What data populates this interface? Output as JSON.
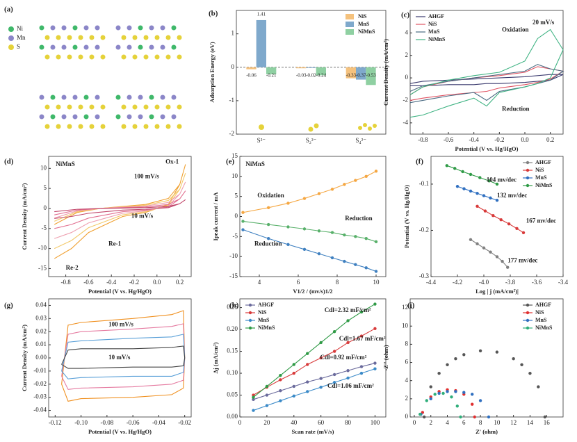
{
  "figure_a": {
    "label": "(a)",
    "legend": [
      "Ni",
      "Mn",
      "S"
    ]
  },
  "chart_data": [
    {
      "type": "bar",
      "panel": "(b)",
      "ylabel": "Adsorption Energy (eV)",
      "categories": [
        "S²⁻",
        "S₂²⁻",
        "S₄²⁻"
      ],
      "series": [
        {
          "name": "NiS",
          "color": "#f5c27e",
          "values": [
            -0.06,
            -0.03,
            -0.33
          ]
        },
        {
          "name": "MnS",
          "color": "#7fa9cc",
          "values": [
            1.41,
            -0.02,
            -0.37
          ]
        },
        {
          "name": "NiMnS",
          "color": "#8fd0a2",
          "values": [
            -0.21,
            -0.24,
            -0.53
          ]
        }
      ],
      "ylim": [
        -2,
        1.7
      ],
      "yticks": [
        -2,
        -1,
        0,
        1
      ],
      "legend": "upper right",
      "data_labels": true
    },
    {
      "type": "line",
      "panel": "(c)",
      "xlabel": "Potential (V vs. Hg/HgO)",
      "ylabel": "Current Density (mA/cm²)",
      "x": [
        -0.9,
        -0.8,
        -0.6,
        -0.4,
        -0.2,
        0,
        0.1,
        0.2,
        0.3,
        0.2,
        0.1,
        0,
        -0.2,
        -0.3,
        -0.4,
        -0.6,
        -0.8,
        -0.9
      ],
      "series": [
        {
          "name": "AHGF",
          "color": "#3a3a6e",
          "values": [
            -0.5,
            -0.3,
            -0.2,
            -0.1,
            0,
            0.1,
            0.2,
            0.3,
            0.3,
            -0.2,
            -0.3,
            -0.4,
            -0.5,
            -0.5,
            -0.6,
            -0.6,
            -0.7,
            -0.7
          ]
        },
        {
          "name": "NiS",
          "color": "#e05262",
          "values": [
            -1.5,
            -0.8,
            -0.3,
            0,
            0.2,
            0.5,
            1.0,
            0.8,
            0.6,
            -0.1,
            -0.4,
            -0.6,
            -0.9,
            -1.2,
            -1.3,
            -1.5,
            -1.8,
            -2.0
          ]
        },
        {
          "name": "MnS",
          "color": "#4a6a82",
          "values": [
            -1.2,
            -0.7,
            -0.3,
            0,
            0.3,
            0.6,
            1.2,
            0.8,
            0.6,
            -0.2,
            -0.5,
            -0.8,
            -1.2,
            -2.0,
            -1.3,
            -1.6,
            -2.0,
            -2.2
          ]
        },
        {
          "name": "NiMnS",
          "color": "#3fb383",
          "values": [
            -1.5,
            -0.8,
            -0.2,
            0.2,
            0.5,
            1.5,
            3.5,
            4.3,
            2.5,
            0,
            -0.5,
            -0.8,
            -1.3,
            -2.5,
            -1.8,
            -2.5,
            -3.3,
            -3.5
          ]
        }
      ],
      "xlim": [
        -0.9,
        0.3
      ],
      "xticks": [
        -0.8,
        -0.6,
        -0.4,
        -0.2,
        {
          "value": 0,
          "label": "0.0"
        },
        0.2
      ],
      "ylim": [
        -5,
        6
      ],
      "yticks": [
        -4,
        -2,
        0,
        2,
        4
      ],
      "legend": "upper left",
      "annotations": [
        "20 mV/s",
        "Oxidation",
        "Reduction"
      ]
    },
    {
      "type": "line",
      "panel": "(d)",
      "xlabel": "Potential (V vs. Hg/HgO)",
      "ylabel": "Current Density (mA/cm²)",
      "x": [
        -0.9,
        -0.7,
        -0.5,
        -0.3,
        -0.1,
        0.1,
        0.2,
        0.25,
        0.2,
        0.1,
        -0.1,
        -0.3,
        -0.45,
        -0.6,
        -0.75,
        -0.9
      ],
      "series": [
        {
          "color": "#f0a030",
          "values": [
            -4,
            -1,
            0,
            0.5,
            1,
            2.5,
            6,
            11,
            6,
            1,
            -1,
            -2,
            -4,
            -6,
            -10,
            -12.5
          ]
        },
        {
          "color": "#f3c96a",
          "values": [
            -3.2,
            -0.8,
            0,
            0.4,
            0.8,
            2,
            4.8,
            8.8,
            4.8,
            0.8,
            -0.8,
            -1.6,
            -3.2,
            -4.8,
            -8,
            -10
          ]
        },
        {
          "color": "#eea0b0",
          "values": [
            -2.4,
            -0.6,
            0,
            0.3,
            0.6,
            1.5,
            3.6,
            6.6,
            3.6,
            0.6,
            -0.6,
            -1.2,
            -2.4,
            -3.6,
            -6,
            -7.5
          ]
        },
        {
          "color": "#e27090",
          "values": [
            -1.6,
            -0.4,
            0,
            0.2,
            0.4,
            1,
            2.4,
            4.4,
            2.4,
            0.4,
            -0.4,
            -0.8,
            -1.6,
            -2.4,
            -4,
            -5
          ]
        },
        {
          "color": "#c04468",
          "values": [
            -0.8,
            -0.2,
            0,
            0.1,
            0.2,
            0.5,
            1.2,
            2.2,
            1.2,
            0.2,
            -0.2,
            -0.4,
            -0.8,
            -1.2,
            -2,
            -2.5
          ]
        }
      ],
      "xlim": [
        -0.95,
        0.3
      ],
      "xticks": [
        -0.8,
        -0.6,
        -0.4,
        -0.2,
        {
          "value": 0,
          "label": "0.0"
        },
        0.2
      ],
      "ylim": [
        -17,
        13
      ],
      "yticks": [
        -15,
        -10,
        -5,
        0,
        5,
        10
      ],
      "annotations": [
        "NiMnS",
        "Ox-1",
        "100 mV/s",
        "10 mV/s",
        "Re-1",
        "Re-2"
      ]
    },
    {
      "type": "line",
      "panel": "(e)",
      "xlabel": "V1/2 / (mv/s)1/2",
      "ylabel": "Ipeak current / mA",
      "markers": true,
      "x": [
        3.16,
        4.47,
        5.48,
        6.32,
        7.07,
        7.75,
        8.37,
        8.94,
        9.49,
        10
      ],
      "series": [
        {
          "color": "#f5a742",
          "values": [
            1,
            2.2,
            3.3,
            4.5,
            5.7,
            6.8,
            8,
            9,
            10,
            11.3
          ]
        },
        {
          "color": "#58b06a",
          "values": [
            -1.2,
            -2,
            -2.6,
            -3.1,
            -3.6,
            -4,
            -4.6,
            -5,
            -5.5,
            -6.3
          ]
        },
        {
          "color": "#3f80c0",
          "values": [
            -3.3,
            -5.5,
            -7,
            -8.2,
            -9.3,
            -10.3,
            -11.2,
            -12,
            -12.8,
            -13.7
          ]
        }
      ],
      "xlim": [
        3,
        10.5
      ],
      "xticks": [
        4,
        6,
        8,
        10
      ],
      "ylim": [
        -15,
        15
      ],
      "yticks": [
        -15,
        -10,
        -5,
        0,
        5,
        10,
        15
      ],
      "annotations": [
        "NiMnS",
        "Oxidation",
        "Reduction",
        "Reduction"
      ]
    },
    {
      "type": "line",
      "panel": "(f)",
      "xlabel": "Log | j (mA/cm²)|",
      "ylabel": "Potential (V vs. Hg/HgO)",
      "markers": true,
      "series": [
        {
          "name": "AHGF",
          "color": "#808080",
          "x": [
            -4.1,
            -4.05,
            -4.0,
            -3.95,
            -3.9,
            -3.86,
            -3.82
          ],
          "values": [
            -0.22,
            -0.229,
            -0.238,
            -0.247,
            -0.257,
            -0.267,
            -0.28
          ]
        },
        {
          "name": "NiS",
          "color": "#d83a3a",
          "x": [
            -4.05,
            -3.99,
            -3.93,
            -3.87,
            -3.81,
            -3.75,
            -3.7
          ],
          "values": [
            -0.148,
            -0.158,
            -0.168,
            -0.177,
            -0.186,
            -0.196,
            -0.205
          ]
        },
        {
          "name": "MnS",
          "color": "#2f6fc0",
          "x": [
            -4.2,
            -4.15,
            -4.1,
            -4.05,
            -4.0,
            -3.95,
            -3.9
          ],
          "values": [
            -0.105,
            -0.11,
            -0.115,
            -0.12,
            -0.125,
            -0.13,
            -0.135
          ]
        },
        {
          "name": "NiMnS",
          "color": "#2f9a46",
          "x": [
            -4.28,
            -4.22,
            -4.16,
            -4.1,
            -4.03,
            -3.96,
            -3.9
          ],
          "values": [
            -0.06,
            -0.066,
            -0.073,
            -0.079,
            -0.086,
            -0.093,
            -0.1
          ]
        }
      ],
      "xlim": [
        -4.4,
        -3.4
      ],
      "xticks": [
        -4.4,
        -4.2,
        {
          "value": -4,
          "label": "-4.0"
        },
        -3.8,
        -3.6,
        -3.4
      ],
      "ylim": [
        -0.3,
        -0.04
      ],
      "yticks": [
        -0.3,
        -0.2,
        -0.1
      ],
      "legend": "upper right",
      "annotations": [
        "104 mv/dec",
        "132 mv/dec",
        "167 mv/dec",
        "177 mv/dec"
      ]
    },
    {
      "type": "line",
      "panel": "(g)",
      "xlabel": "Potential (V vs. Hg/HgO)",
      "ylabel": "Current Density (mA/cm²)",
      "x": [
        -0.115,
        -0.11,
        -0.1,
        -0.06,
        -0.03,
        -0.021,
        -0.02,
        -0.021,
        -0.03,
        -0.06,
        -0.1,
        -0.11,
        -0.115
      ],
      "series": [
        {
          "color": "#f0901f",
          "values": [
            -0.02,
            0.025,
            0.027,
            0.03,
            0.033,
            0.036,
            0,
            -0.023,
            -0.028,
            -0.03,
            -0.031,
            -0.033,
            -0.02
          ]
        },
        {
          "color": "#e57aa0",
          "values": [
            -0.014,
            0.018,
            0.02,
            0.022,
            0.024,
            0.026,
            0,
            -0.017,
            -0.02,
            -0.022,
            -0.023,
            -0.024,
            -0.014
          ]
        },
        {
          "color": "#5aa0d8",
          "values": [
            -0.01,
            0.012,
            0.013,
            0.015,
            0.016,
            0.018,
            0,
            -0.011,
            -0.014,
            -0.014,
            -0.015,
            -0.016,
            -0.01
          ]
        },
        {
          "color": "#444444",
          "values": [
            -0.005,
            0.006,
            0.007,
            0.007,
            0.008,
            0.009,
            0,
            -0.006,
            -0.007,
            -0.007,
            -0.008,
            -0.008,
            -0.005
          ]
        }
      ],
      "xlim": [
        -0.125,
        -0.015
      ],
      "xticks": [
        -0.12,
        {
          "value": -0.1,
          "label": "-0.10"
        },
        -0.08,
        -0.06,
        -0.04,
        -0.02
      ],
      "ylim": [
        -0.045,
        0.045
      ],
      "yticks": [
        -0.04,
        -0.03,
        -0.02,
        -0.01,
        {
          "value": 0,
          "label": "0.00"
        },
        0.01,
        0.02,
        0.03,
        0.04
      ],
      "annotations": [
        "100 mV/s",
        "10 mV/s"
      ]
    },
    {
      "type": "line",
      "panel": "(h)",
      "xlabel": "Scan rate (mV/s)",
      "ylabel": "Δj (mA/cm²)",
      "markers": true,
      "x": [
        10,
        20,
        30,
        40,
        50,
        60,
        70,
        80,
        90,
        100
      ],
      "series": [
        {
          "name": "AHGF",
          "color": "#6a6a9c",
          "values": [
            0.04,
            0.05,
            0.06,
            0.07,
            0.08,
            0.088,
            0.097,
            0.106,
            0.115,
            0.123
          ]
        },
        {
          "name": "NiS",
          "color": "#d83a3a",
          "values": [
            0.05,
            0.068,
            0.085,
            0.1,
            0.12,
            0.135,
            0.15,
            0.17,
            0.185,
            0.202
          ]
        },
        {
          "name": "MnS",
          "color": "#3a8ac8",
          "values": [
            0.015,
            0.026,
            0.037,
            0.048,
            0.058,
            0.068,
            0.079,
            0.089,
            0.1,
            0.11
          ]
        },
        {
          "name": "NiMnS",
          "color": "#2f9a46",
          "values": [
            0.045,
            0.07,
            0.095,
            0.12,
            0.145,
            0.17,
            0.195,
            0.22,
            0.24,
            0.258
          ]
        }
      ],
      "xlim": [
        0,
        108
      ],
      "xticks": [
        0,
        20,
        40,
        60,
        80,
        100
      ],
      "ylim": [
        0,
        0.27
      ],
      "yticks": [
        {
          "value": 0,
          "label": "0.00"
        },
        {
          "value": 0.05,
          "label": "0.05"
        },
        {
          "value": 0.1,
          "label": "0.10"
        },
        {
          "value": 0.15,
          "label": "0.15"
        },
        {
          "value": 0.2,
          "label": "0.20"
        },
        {
          "value": 0.25,
          "label": "0.25"
        }
      ],
      "legend": "upper left",
      "annotations": [
        "Cdl=2.32 mF/cm²",
        "Cdl=1.67 mF/cm²",
        "Cdl=0.92 mF/cm²",
        "Cdl=1.06 mF/cm²"
      ]
    },
    {
      "type": "scatter",
      "panel": "(i)",
      "xlabel": "Z' (ohm)",
      "ylabel": "-Z'' (ohm)",
      "series": [
        {
          "name": "AHGF",
          "color": "#555555",
          "x": [
            1.2,
            2,
            3,
            4,
            5,
            6,
            8,
            10,
            12,
            13,
            14,
            15,
            15.8
          ],
          "values": [
            0,
            3.32,
            4.8,
            5.75,
            6.41,
            6.86,
            7.28,
            7.14,
            6.41,
            5.75,
            4.8,
            3.32,
            0
          ]
        },
        {
          "name": "NiS",
          "color": "#e03030",
          "x": [
            1,
            2,
            3,
            4,
            5,
            6,
            7,
            7.3
          ],
          "values": [
            0.5,
            2.2,
            2.8,
            3,
            2.9,
            2.5,
            1.4,
            0
          ]
        },
        {
          "name": "MnS",
          "color": "#2f6fc0",
          "x": [
            0.8,
            2,
            3,
            4,
            5,
            6,
            7,
            8,
            9
          ],
          "values": [
            0.3,
            2,
            2.6,
            2.8,
            2.8,
            2.7,
            2.5,
            1.8,
            0
          ]
        },
        {
          "name": "NiMnS",
          "color": "#2fae7a",
          "x": [
            0.7,
            1.5,
            2.5,
            3.5,
            4.5,
            5.2,
            5.6
          ],
          "values": [
            0.3,
            1.8,
            2.5,
            2.6,
            2.2,
            1.2,
            0
          ]
        }
      ],
      "xlim": [
        -0.5,
        18
      ],
      "xticks": [
        0,
        2,
        4,
        6,
        8,
        10,
        12,
        14,
        16
      ],
      "ylim": [
        0,
        13
      ],
      "yticks": [
        0,
        2,
        4,
        6,
        8,
        10,
        12
      ],
      "legend": "upper right"
    }
  ]
}
